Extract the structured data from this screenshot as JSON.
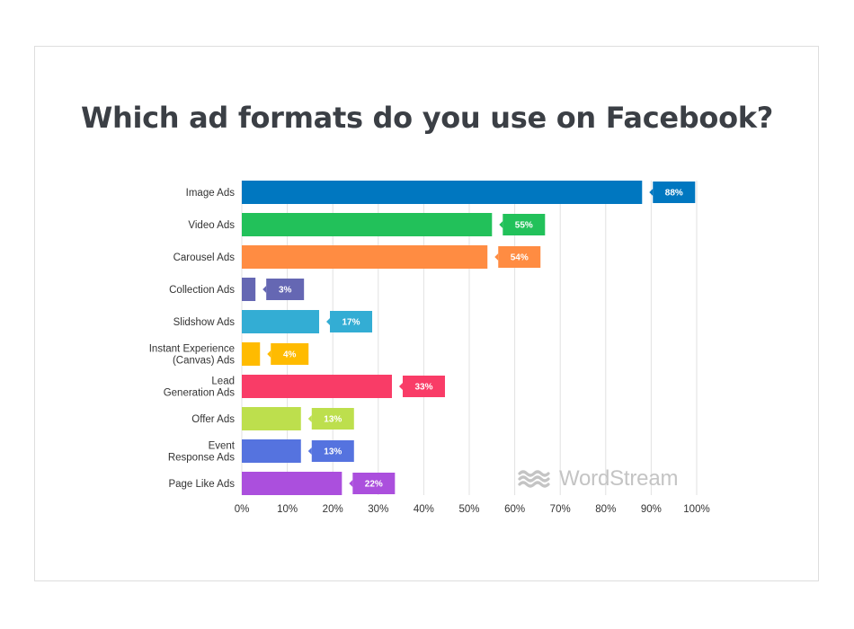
{
  "title": "Which ad formats do you use on Facebook?",
  "brand": {
    "name": "WordStream",
    "icon": "wave-logo-icon",
    "color": "#c4c4c4"
  },
  "chart_data": {
    "type": "bar",
    "orientation": "horizontal",
    "title": "Which ad formats do you use on Facebook?",
    "xlabel": "",
    "ylabel": "",
    "xlim": [
      0,
      100
    ],
    "ticks": [
      "0%",
      "10%",
      "20%",
      "30%",
      "40%",
      "50%",
      "60%",
      "70%",
      "80%",
      "90%",
      "100%"
    ],
    "grid": "vertical",
    "categories": [
      [
        "Image Ads"
      ],
      [
        "Video Ads"
      ],
      [
        "Carousel Ads"
      ],
      [
        "Collection Ads"
      ],
      [
        "Slidshow Ads"
      ],
      [
        "Instant Experience",
        "(Canvas) Ads"
      ],
      [
        "Lead",
        "Generation Ads"
      ],
      [
        "Offer Ads"
      ],
      [
        "Event",
        "Response Ads"
      ],
      [
        "Page Like Ads"
      ]
    ],
    "values": [
      88,
      55,
      54,
      3,
      17,
      4,
      33,
      13,
      13,
      22
    ],
    "value_labels": [
      "88%",
      "55%",
      "54%",
      "3%",
      "17%",
      "4%",
      "33%",
      "13%",
      "13%",
      "22%"
    ],
    "colors": [
      "#0077c0",
      "#22c15a",
      "#ff8c42",
      "#6567b3",
      "#33add4",
      "#ffbb00",
      "#f93c67",
      "#bddf4d",
      "#5573df",
      "#ab4fdd"
    ]
  }
}
